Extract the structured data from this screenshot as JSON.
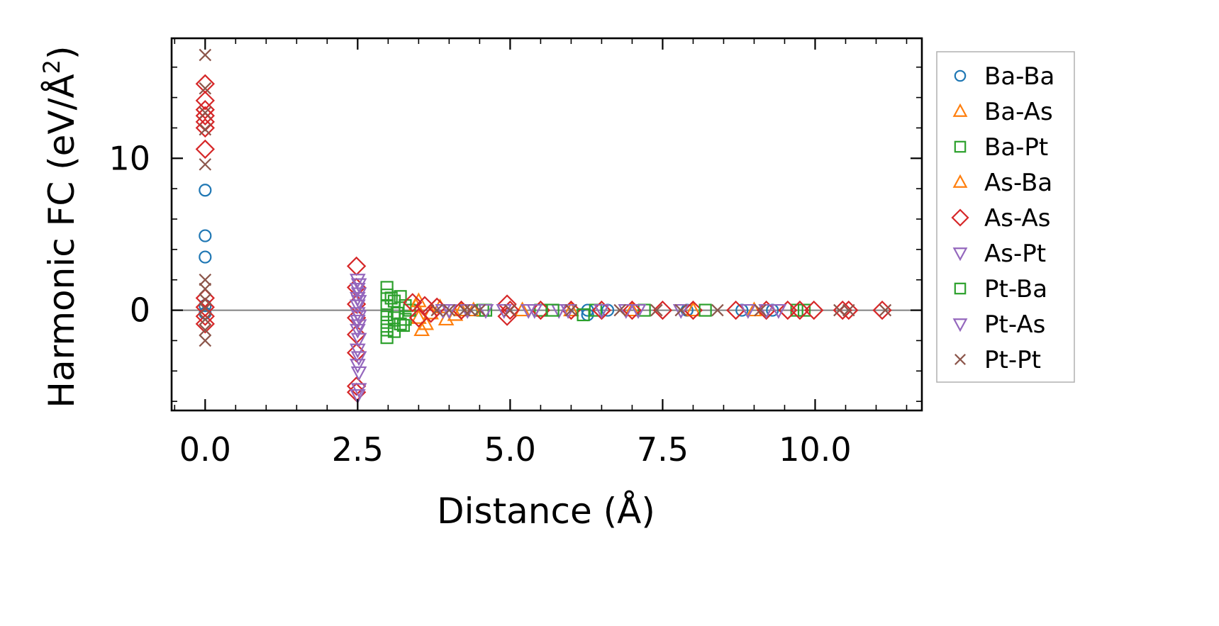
{
  "chart_data": {
    "type": "scatter",
    "xlabel": "Distance (Å)",
    "ylabel_main": "Harmonic FC (eV/Å",
    "ylabel_sup": "2",
    "ylabel_close": ")",
    "xlim": [
      -0.55,
      11.75
    ],
    "ylim": [
      -6.6,
      17.9
    ],
    "x_ticks": [
      0.0,
      2.5,
      5.0,
      7.5,
      10.0
    ],
    "x_tick_labels": [
      "0.0",
      "2.5",
      "5.0",
      "7.5",
      "10.0"
    ],
    "y_ticks": [
      0,
      10
    ],
    "y_tick_labels": [
      "0",
      "10"
    ],
    "zero_line": 0,
    "legend_position": "right, outside plot",
    "series": [
      {
        "name": "Ba-Ba",
        "marker": "circle",
        "color": "#1f77b4",
        "points": [
          [
            0.0,
            7.9
          ],
          [
            0.0,
            4.9
          ],
          [
            0.0,
            3.5
          ],
          [
            0.0,
            0.3
          ],
          [
            0.0,
            -0.2
          ],
          [
            6.27,
            0.0
          ],
          [
            6.27,
            -0.3
          ],
          [
            6.6,
            0.0
          ],
          [
            7.9,
            0.0
          ],
          [
            8.8,
            0.0
          ],
          [
            9.3,
            0.0
          ]
        ]
      },
      {
        "name": "Ba-As",
        "marker": "triangle-up",
        "color": "#ff7f0e",
        "points": [
          [
            3.45,
            0.3
          ],
          [
            3.5,
            -0.5
          ],
          [
            3.55,
            -1.3
          ],
          [
            3.7,
            -0.2
          ],
          [
            3.95,
            -0.6
          ],
          [
            4.2,
            0.0
          ],
          [
            5.2,
            0.0
          ],
          [
            6.0,
            0.0
          ],
          [
            7.0,
            0.0
          ],
          [
            8.0,
            0.0
          ],
          [
            9.0,
            0.0
          ]
        ]
      },
      {
        "name": "Ba-Pt",
        "marker": "square",
        "color": "#2ca02c",
        "points": [
          [
            2.98,
            1.5
          ],
          [
            2.98,
            1.0
          ],
          [
            2.98,
            0.3
          ],
          [
            2.98,
            -0.3
          ],
          [
            2.98,
            -0.8
          ],
          [
            2.98,
            -1.3
          ],
          [
            2.98,
            -1.8
          ],
          [
            3.1,
            0.6
          ],
          [
            3.1,
            -0.5
          ],
          [
            3.1,
            -1.4
          ],
          [
            3.2,
            0.9
          ],
          [
            3.2,
            -0.9
          ],
          [
            3.28,
            0.3
          ],
          [
            3.28,
            -0.6
          ],
          [
            3.35,
            0.0
          ],
          [
            4.55,
            0.0
          ],
          [
            5.5,
            0.0
          ],
          [
            6.4,
            0.0
          ],
          [
            7.2,
            0.0
          ],
          [
            9.7,
            0.0
          ],
          [
            9.82,
            0.0
          ]
        ]
      },
      {
        "name": "As-Ba",
        "marker": "triangle-up",
        "color": "#ff7f0e",
        "points": [
          [
            3.5,
            0.6
          ],
          [
            3.62,
            -0.9
          ],
          [
            3.85,
            0.2
          ],
          [
            4.1,
            -0.3
          ],
          [
            4.4,
            0.0
          ]
        ]
      },
      {
        "name": "As-As",
        "marker": "diamond",
        "color": "#d62728",
        "points": [
          [
            0.0,
            14.9
          ],
          [
            0.0,
            13.8
          ],
          [
            0.0,
            13.2
          ],
          [
            0.0,
            12.8
          ],
          [
            0.0,
            12.4
          ],
          [
            0.0,
            12.0
          ],
          [
            0.0,
            10.6
          ],
          [
            0.0,
            0.8
          ],
          [
            0.0,
            0.2
          ],
          [
            0.0,
            -0.4
          ],
          [
            0.0,
            -0.9
          ],
          [
            2.48,
            2.9
          ],
          [
            2.48,
            1.5
          ],
          [
            2.48,
            0.4
          ],
          [
            2.48,
            -0.5
          ],
          [
            2.48,
            -1.6
          ],
          [
            2.48,
            -2.8
          ],
          [
            2.48,
            -5.0
          ],
          [
            2.48,
            -5.4
          ],
          [
            3.4,
            0.5
          ],
          [
            3.5,
            -0.5
          ],
          [
            3.6,
            0.3
          ],
          [
            3.7,
            -0.2
          ],
          [
            3.8,
            0.2
          ],
          [
            4.2,
            0.0
          ],
          [
            4.95,
            0.4
          ],
          [
            4.95,
            -0.4
          ],
          [
            5.0,
            0.0
          ],
          [
            5.5,
            0.0
          ],
          [
            6.0,
            0.0
          ],
          [
            6.5,
            0.0
          ],
          [
            7.0,
            0.0
          ],
          [
            7.5,
            0.0
          ],
          [
            8.0,
            0.0
          ],
          [
            8.7,
            0.0
          ],
          [
            9.2,
            0.0
          ],
          [
            9.55,
            0.0
          ],
          [
            9.75,
            0.0
          ],
          [
            9.98,
            0.0
          ],
          [
            10.45,
            0.0
          ],
          [
            10.55,
            0.0
          ],
          [
            11.1,
            0.0
          ]
        ]
      },
      {
        "name": "As-Pt",
        "marker": "triangle-down",
        "color": "#9467bd",
        "points": [
          [
            2.5,
            2.0
          ],
          [
            2.5,
            1.4
          ],
          [
            2.5,
            0.8
          ],
          [
            2.5,
            0.3
          ],
          [
            2.5,
            -0.2
          ],
          [
            2.5,
            -0.7
          ],
          [
            2.5,
            -1.3
          ],
          [
            2.5,
            -2.6
          ],
          [
            2.5,
            -3.6
          ],
          [
            2.5,
            -5.6
          ],
          [
            3.9,
            0.0
          ],
          [
            4.3,
            0.0
          ],
          [
            4.9,
            0.0
          ],
          [
            5.4,
            0.0
          ],
          [
            5.8,
            0.0
          ],
          [
            6.5,
            0.0
          ],
          [
            7.1,
            0.0
          ],
          [
            8.9,
            0.0
          ],
          [
            9.4,
            0.0
          ]
        ]
      },
      {
        "name": "Pt-Ba",
        "marker": "square",
        "color": "#2ca02c",
        "points": [
          [
            3.05,
            0.8
          ],
          [
            3.15,
            -0.2
          ],
          [
            3.25,
            -1.0
          ],
          [
            4.6,
            0.0
          ],
          [
            5.7,
            0.0
          ],
          [
            6.2,
            -0.3
          ],
          [
            8.2,
            0.0
          ]
        ]
      },
      {
        "name": "Pt-As",
        "marker": "triangle-down",
        "color": "#9467bd",
        "points": [
          [
            2.52,
            1.7
          ],
          [
            2.52,
            1.1
          ],
          [
            2.52,
            0.6
          ],
          [
            2.52,
            -0.4
          ],
          [
            2.52,
            -1.0
          ],
          [
            2.52,
            -1.9
          ],
          [
            2.52,
            -3.1
          ],
          [
            2.52,
            -4.1
          ],
          [
            2.52,
            -5.2
          ],
          [
            4.0,
            0.0
          ],
          [
            4.6,
            0.0
          ],
          [
            5.3,
            0.0
          ],
          [
            5.95,
            0.0
          ],
          [
            6.9,
            0.0
          ],
          [
            7.8,
            0.0
          ],
          [
            9.2,
            0.0
          ]
        ]
      },
      {
        "name": "Pt-Pt",
        "marker": "x",
        "color": "#8c564b",
        "points": [
          [
            0.0,
            16.8
          ],
          [
            0.0,
            14.6
          ],
          [
            0.0,
            13.0
          ],
          [
            0.0,
            11.9
          ],
          [
            0.0,
            9.6
          ],
          [
            0.0,
            2.0
          ],
          [
            0.0,
            1.4
          ],
          [
            0.0,
            0.7
          ],
          [
            0.0,
            0.1
          ],
          [
            0.0,
            -0.6
          ],
          [
            0.0,
            -1.3
          ],
          [
            0.0,
            -2.0
          ],
          [
            3.8,
            0.0
          ],
          [
            4.0,
            0.0
          ],
          [
            4.25,
            0.0
          ],
          [
            4.35,
            0.0
          ],
          [
            4.5,
            0.0
          ],
          [
            5.0,
            0.0
          ],
          [
            6.0,
            0.0
          ],
          [
            6.8,
            0.0
          ],
          [
            7.4,
            0.0
          ],
          [
            7.8,
            0.0
          ],
          [
            8.4,
            0.0
          ],
          [
            9.1,
            0.0
          ],
          [
            10.4,
            0.0
          ],
          [
            10.55,
            0.0
          ],
          [
            11.15,
            0.0
          ]
        ]
      }
    ]
  }
}
